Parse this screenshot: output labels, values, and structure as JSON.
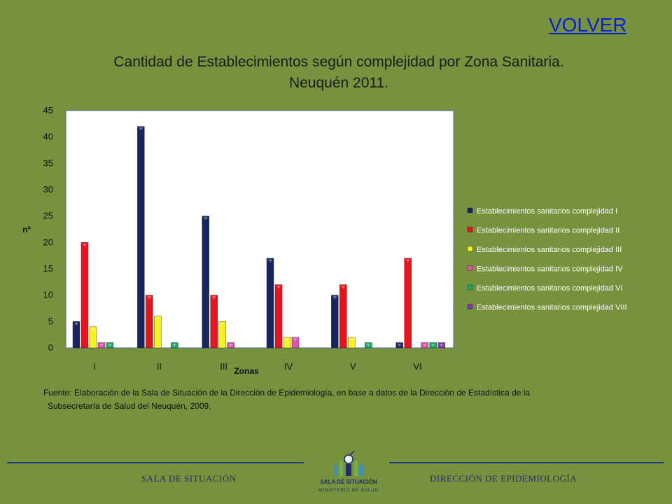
{
  "header": {
    "back_link": "VOLVER"
  },
  "chart_data": {
    "type": "bar",
    "title_line1": "Cantidad de Establecimientos según complejidad por Zona Sanitaria.",
    "title_line2": "Neuquén 2011.",
    "xlabel": "Zonas",
    "ylabel": "nº",
    "ylim": [
      0,
      45
    ],
    "yticks": [
      0,
      5,
      10,
      15,
      20,
      25,
      30,
      35,
      40,
      45
    ],
    "categories": [
      "I",
      "II",
      "III",
      "IV",
      "V",
      "VI"
    ],
    "legend_position": "right",
    "series": [
      {
        "name": "Establecimientos sanitarios complejidad I",
        "color": "#17255e",
        "values": [
          5,
          42,
          25,
          17,
          10,
          1
        ]
      },
      {
        "name": "Establecimientos sanitarios complejidad II",
        "color": "#e8141b",
        "values": [
          20,
          10,
          10,
          12,
          12,
          17
        ]
      },
      {
        "name": "Establecimientos sanitarios complejidad III",
        "color": "#f4f41a",
        "values": [
          4,
          6,
          5,
          2,
          2,
          0
        ]
      },
      {
        "name": "Establecimientos sanitarios complejidad IV",
        "color": "#e052a8",
        "values": [
          1,
          0,
          1,
          2,
          0,
          1
        ]
      },
      {
        "name": "Establecimientos sanitarios complejidad VI",
        "color": "#1ca867",
        "values": [
          1,
          1,
          0,
          0,
          1,
          1
        ]
      },
      {
        "name": "Establecimientos sanitarios complejidad VIII",
        "color": "#7a3aa6",
        "values": [
          0,
          0,
          0,
          0,
          0,
          1
        ]
      }
    ]
  },
  "source": {
    "line1": "Fuente: Elaboración de la Sala de Situación de la Dirección de Epidemiología, en base a datos de la Dirección de Estadística de la",
    "line2": "Subsecretaría  de Salud del Neuquén, 2009."
  },
  "footer": {
    "left": "SALA DE SITUACIÓN",
    "right": "DIRECCIÓN DE EPIDEMIOLOGÍA",
    "logo_title": "SALA DE SITUACIÓN",
    "logo_sub": "MINISTERIO DE SALUD"
  }
}
